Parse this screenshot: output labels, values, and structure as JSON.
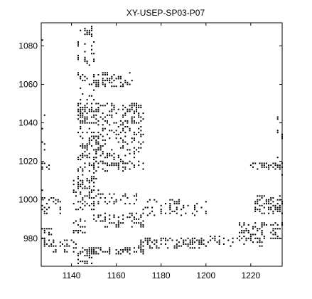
{
  "chart_data": {
    "type": "scatter",
    "title": "XY-USEP-SP03-P07",
    "xlabel": "",
    "ylabel": "",
    "xlim": [
      1126.5,
      1234
    ],
    "ylim": [
      965.5,
      1092
    ],
    "xticks": [
      1140,
      1160,
      1180,
      1200,
      1220
    ],
    "yticks": [
      980,
      1000,
      1020,
      1040,
      1060,
      1080
    ],
    "grid": false,
    "legend": "none",
    "marker_color": "#000000",
    "background": "#ffffff",
    "clusters": [
      {
        "x": [
          1127,
          1128
        ],
        "y": [
          1083,
          1088
        ],
        "density": 0.15
      },
      {
        "x": [
          1126.5,
          1128
        ],
        "y": [
          1000,
          1045
        ],
        "density": 0.08
      },
      {
        "x": [
          1126.5,
          1130
        ],
        "y": [
          1016,
          1019
        ],
        "density": 0.35
      },
      {
        "x": [
          1126.5,
          1135
        ],
        "y": [
          993,
          1001
        ],
        "density": 0.3
      },
      {
        "x": [
          1126.5,
          1134
        ],
        "y": [
          976,
          985
        ],
        "density": 0.3
      },
      {
        "x": [
          1132,
          1142
        ],
        "y": [
          973,
          979
        ],
        "density": 0.25
      },
      {
        "x": [
          1144,
          1149
        ],
        "y": [
          1085,
          1090
        ],
        "density": 0.4
      },
      {
        "x": [
          1143,
          1150
        ],
        "y": [
          1050,
          1082
        ],
        "density": 0.18
      },
      {
        "x": [
          1143,
          1146
        ],
        "y": [
          1040,
          1050
        ],
        "density": 0.35
      },
      {
        "x": [
          1143,
          1152
        ],
        "y": [
          1005,
          1050
        ],
        "density": 0.3
      },
      {
        "x": [
          1141,
          1150
        ],
        "y": [
          995,
          1010
        ],
        "density": 0.35
      },
      {
        "x": [
          1141,
          1147
        ],
        "y": [
          983,
          990
        ],
        "density": 0.3
      },
      {
        "x": [
          1143,
          1150
        ],
        "y": [
          967,
          975
        ],
        "density": 0.35
      },
      {
        "x": [
          1150,
          1160
        ],
        "y": [
          1059,
          1066
        ],
        "density": 0.35
      },
      {
        "x": [
          1160,
          1167
        ],
        "y": [
          1059,
          1066
        ],
        "density": 0.3
      },
      {
        "x": [
          1150,
          1172
        ],
        "y": [
          1030,
          1050
        ],
        "density": 0.3
      },
      {
        "x": [
          1150,
          1172
        ],
        "y": [
          1018,
          1030
        ],
        "density": 0.22
      },
      {
        "x": [
          1148,
          1172
        ],
        "y": [
          1015,
          1019
        ],
        "density": 0.3
      },
      {
        "x": [
          1150,
          1170
        ],
        "y": [
          998,
          1003
        ],
        "density": 0.25
      },
      {
        "x": [
          1150,
          1172
        ],
        "y": [
          986,
          993
        ],
        "density": 0.3
      },
      {
        "x": [
          1148,
          1172
        ],
        "y": [
          972,
          975
        ],
        "density": 0.45
      },
      {
        "x": [
          1170,
          1200
        ],
        "y": [
          975,
          980
        ],
        "density": 0.4
      },
      {
        "x": [
          1172,
          1200
        ],
        "y": [
          992,
          1000
        ],
        "density": 0.2
      },
      {
        "x": [
          1200,
          1225
        ],
        "y": [
          976,
          981
        ],
        "density": 0.3
      },
      {
        "x": [
          1215,
          1234
        ],
        "y": [
          980,
          988
        ],
        "density": 0.35
      },
      {
        "x": [
          1222,
          1234
        ],
        "y": [
          993,
          1002
        ],
        "density": 0.45
      },
      {
        "x": [
          1220,
          1234
        ],
        "y": [
          1016,
          1019
        ],
        "density": 0.4
      },
      {
        "x": [
          1232,
          1234
        ],
        "y": [
          1010,
          1045
        ],
        "density": 0.15
      }
    ]
  }
}
